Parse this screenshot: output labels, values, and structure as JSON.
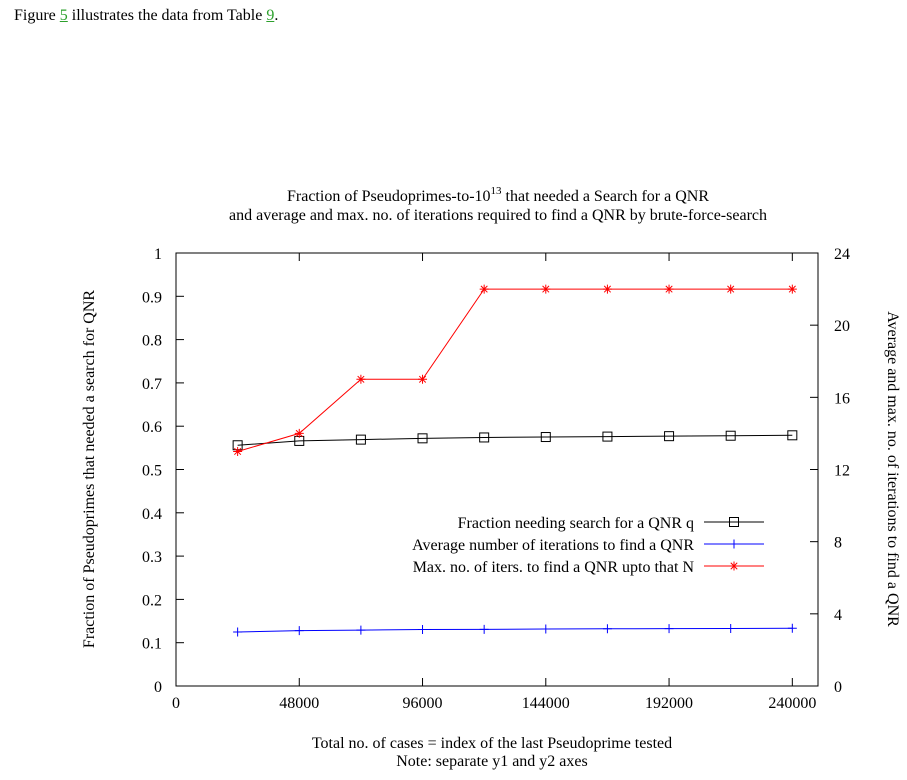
{
  "intro": {
    "before": "Figure ",
    "figure_ref": "5",
    "middle": " illustrates the data from Table ",
    "table_ref": "9",
    "after": "."
  },
  "chart_data": {
    "type": "line",
    "title_line1_prefix": "Fraction of Pseudoprimes-to-10",
    "title_line1_superscript": "13",
    "title_line1_suffix": " that needed a Search for a QNR",
    "title_line2": "and average and max. no. of iterations required to find a QNR by brute-force-search",
    "xlabel": "Total no. of cases = index of the last Pseudoprime tested",
    "xlabel_note": "Note: separate y1 and y2 axes",
    "ylabel": "Fraction of Pseudoprimes that needed a search for QNR",
    "y2label": "Average and max. no. of iterations to find a QNR",
    "xlim": [
      0,
      250000
    ],
    "ylim": [
      0,
      1
    ],
    "y2lim": [
      0,
      24
    ],
    "xticks": [
      0,
      48000,
      96000,
      144000,
      192000,
      240000
    ],
    "xtick_labels": [
      "0",
      "48000",
      "96000",
      "144000",
      "192000",
      "240000"
    ],
    "yticks": [
      0,
      0.1,
      0.2,
      0.3,
      0.4,
      0.5,
      0.6,
      0.7,
      0.8,
      0.9,
      1
    ],
    "ytick_labels": [
      "0",
      "0.1",
      "0.2",
      "0.3",
      "0.4",
      "0.5",
      "0.6",
      "0.7",
      "0.8",
      "0.9",
      "1"
    ],
    "y2ticks": [
      0,
      4,
      8,
      12,
      16,
      20,
      24
    ],
    "y2tick_labels": [
      "0",
      "4",
      "8",
      "12",
      "16",
      "20",
      "24"
    ],
    "grid": false,
    "legend_position": "middle-right",
    "x": [
      24000,
      48000,
      72000,
      96000,
      120000,
      144000,
      168000,
      192000,
      216000,
      240000
    ],
    "series": [
      {
        "name": "Fraction needing search for a QNR q",
        "axis": "y1",
        "color": "#000000",
        "marker": "square",
        "values": [
          0.556,
          0.566,
          0.569,
          0.572,
          0.574,
          0.575,
          0.576,
          0.577,
          0.578,
          0.579
        ]
      },
      {
        "name": "Average number of iterations to find a QNR",
        "axis": "y2",
        "color": "#0000ff",
        "marker": "plus",
        "values": [
          2.99,
          3.07,
          3.1,
          3.13,
          3.14,
          3.16,
          3.17,
          3.18,
          3.19,
          3.2
        ]
      },
      {
        "name": "Max. no. of iters. to find a QNR upto that N",
        "axis": "y2",
        "color": "#ff0000",
        "marker": "star",
        "values": [
          13,
          14,
          17,
          17,
          22,
          22,
          22,
          22,
          22,
          22
        ]
      }
    ]
  }
}
